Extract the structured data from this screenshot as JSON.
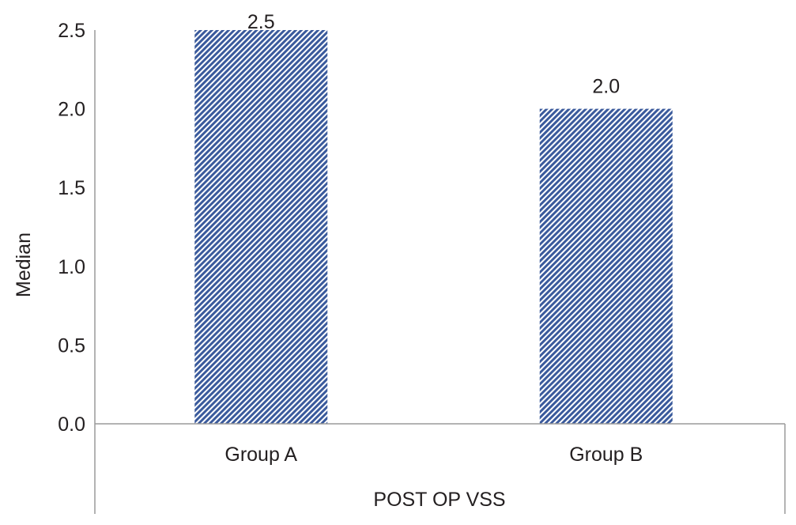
{
  "chart_data": {
    "type": "bar",
    "categories": [
      "Group A",
      "Group B"
    ],
    "values": [
      2.5,
      2.0
    ],
    "data_labels": [
      "2.5",
      "2.0"
    ],
    "xlabel": "POST OP VSS",
    "ylabel": "Median",
    "ylim": [
      0,
      2.5
    ],
    "yticks": [
      0.0,
      0.5,
      1.0,
      1.5,
      2.0,
      2.5
    ],
    "ytick_labels": [
      "0.0",
      "0.5",
      "1.0",
      "1.5",
      "2.0",
      "2.5"
    ],
    "grid": false,
    "legend": "none",
    "bar_fill": "diagonal-hatch",
    "bar_color": "#3a5a9c",
    "axis_color": "#9a9a9a"
  }
}
